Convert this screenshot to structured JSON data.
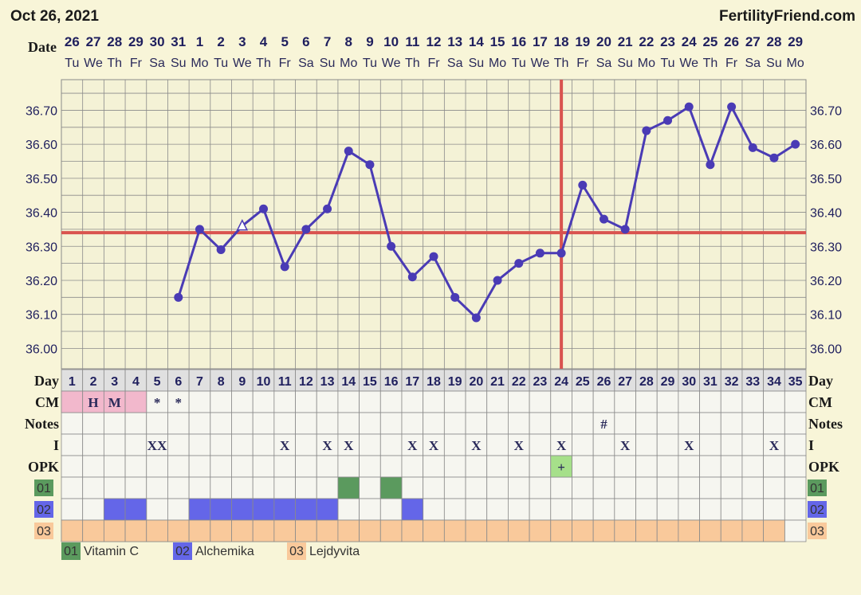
{
  "header": {
    "date": "Oct 26, 2021",
    "site": "FertilityFriend.com"
  },
  "labels": {
    "date": "Date",
    "day": "Day",
    "cm": "CM",
    "notes": "Notes",
    "intercourse": "I",
    "opk": "OPK"
  },
  "dates": [
    "26",
    "27",
    "28",
    "29",
    "30",
    "31",
    "1",
    "2",
    "3",
    "4",
    "5",
    "6",
    "7",
    "8",
    "9",
    "10",
    "11",
    "12",
    "13",
    "14",
    "15",
    "16",
    "17",
    "18",
    "19",
    "20",
    "21",
    "22",
    "23",
    "24",
    "25",
    "26",
    "27",
    "28",
    "29"
  ],
  "weekdays": [
    "Tu",
    "We",
    "Th",
    "Fr",
    "Sa",
    "Su",
    "Mo",
    "Tu",
    "We",
    "Th",
    "Fr",
    "Sa",
    "Su",
    "Mo",
    "Tu",
    "We",
    "Th",
    "Fr",
    "Sa",
    "Su",
    "Mo",
    "Tu",
    "We",
    "Th",
    "Fr",
    "Sa",
    "Su",
    "Mo",
    "Tu",
    "We",
    "Th",
    "Fr",
    "Sa",
    "Su",
    "Mo"
  ],
  "chart_data": {
    "type": "line",
    "x": [
      1,
      2,
      3,
      4,
      5,
      6,
      7,
      8,
      9,
      10,
      11,
      12,
      13,
      14,
      15,
      16,
      17,
      18,
      19,
      20,
      21,
      22,
      23,
      24,
      25,
      26,
      27,
      28,
      29,
      30,
      31,
      32,
      33,
      34,
      35
    ],
    "series": [
      {
        "values": [
          null,
          null,
          null,
          null,
          null,
          36.15,
          36.35,
          36.29,
          36.36,
          36.41,
          36.24,
          36.35,
          36.41,
          36.58,
          36.54,
          36.3,
          36.21,
          36.27,
          36.15,
          36.09,
          36.2,
          36.25,
          36.28,
          36.28,
          36.48,
          36.38,
          36.35,
          36.64,
          36.67,
          36.71,
          36.54,
          36.71,
          36.59,
          36.56,
          36.6
        ]
      }
    ],
    "open_point_days": [
      9
    ],
    "yticks": [
      "36.00",
      "36.10",
      "36.20",
      "36.30",
      "36.40",
      "36.50",
      "36.60",
      "36.70"
    ],
    "ylim": [
      35.94,
      36.79
    ],
    "coverline": 36.34,
    "ovulation_day": 24,
    "line_color": "#4a3bb5",
    "marker_color": "#4a3bb5",
    "coverline_color": "#d9534f"
  },
  "rows": {
    "cm": [
      {
        "day": 1,
        "text": "",
        "color": "#f2b8cc"
      },
      {
        "day": 2,
        "text": "H",
        "color": "#f2b8cc"
      },
      {
        "day": 3,
        "text": "M",
        "color": "#f2b8cc"
      },
      {
        "day": 4,
        "text": "",
        "color": "#f2b8cc"
      },
      {
        "day": 5,
        "text": "*"
      },
      {
        "day": 6,
        "text": "*"
      }
    ],
    "notes": [
      {
        "day": 26,
        "text": "#"
      }
    ],
    "intercourse": [
      {
        "day": 5,
        "text": "XX"
      },
      {
        "day": 11,
        "text": "X"
      },
      {
        "day": 13,
        "text": "X"
      },
      {
        "day": 14,
        "text": "X"
      },
      {
        "day": 17,
        "text": "X"
      },
      {
        "day": 18,
        "text": "X"
      },
      {
        "day": 20,
        "text": "X"
      },
      {
        "day": 22,
        "text": "X"
      },
      {
        "day": 24,
        "text": "X"
      },
      {
        "day": 27,
        "text": "X"
      },
      {
        "day": 30,
        "text": "X"
      },
      {
        "day": 34,
        "text": "X"
      }
    ],
    "opk": [
      {
        "day": 24,
        "text": "+",
        "color": "#a6e08a"
      }
    ]
  },
  "supplements": [
    {
      "code": "01",
      "name": "Vitamin C",
      "color": "#5b9a5e",
      "days": [
        14,
        16
      ]
    },
    {
      "code": "02",
      "name": "Alchemika",
      "color": "#6466e8",
      "days": [
        3,
        4,
        7,
        8,
        9,
        10,
        11,
        12,
        13,
        17
      ]
    },
    {
      "code": "03",
      "name": "Lejdyvita",
      "color": "#f9c99b",
      "days": [
        1,
        2,
        3,
        4,
        5,
        6,
        7,
        8,
        9,
        10,
        11,
        12,
        13,
        14,
        15,
        16,
        17,
        18,
        19,
        20,
        21,
        22,
        23,
        24,
        25,
        26,
        27,
        28,
        29,
        30,
        31,
        32,
        33,
        34
      ]
    }
  ],
  "colors": {
    "background": "#f8f5d8",
    "grid": "#8a8a8a",
    "day_row": "#e0e0e0"
  }
}
